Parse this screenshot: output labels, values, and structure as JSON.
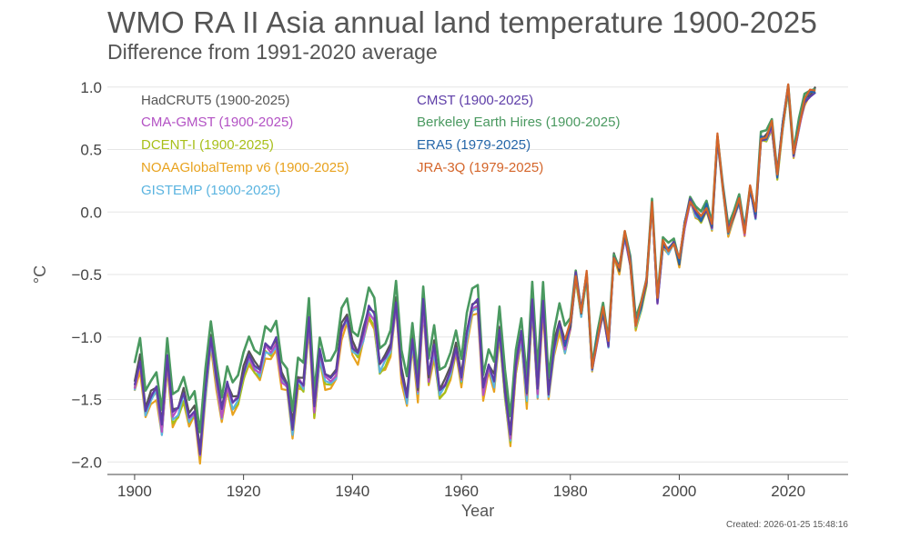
{
  "chart_data": {
    "type": "line",
    "title": "WMO RA II Asia annual land temperature 1900-2025",
    "subtitle": "Difference from 1991-2020 average",
    "xlabel": "Year",
    "ylabel": "°C",
    "xlim": [
      1895,
      2031
    ],
    "ylim": [
      -2.1,
      1.1
    ],
    "xticks": [
      1900,
      1920,
      1940,
      1960,
      1980,
      2000,
      2020
    ],
    "yticks": [
      {
        "value": 1.0,
        "label": "1.0"
      },
      {
        "value": 0.5,
        "label": "0.5"
      },
      {
        "value": 0.0,
        "label": "0.0"
      },
      {
        "value": -0.5,
        "label": "−0.5"
      },
      {
        "value": -1.0,
        "label": "−1.0"
      },
      {
        "value": -1.5,
        "label": "−1.5"
      },
      {
        "value": -2.0,
        "label": "−2.0"
      }
    ],
    "grid": "horizontal",
    "legend_position": "top-left",
    "created": "Created: 2026-01-25 15:48:16",
    "base_series": {
      "start_year": 1900,
      "values": [
        -1.35,
        -1.15,
        -1.55,
        -1.45,
        -1.38,
        -1.7,
        -1.15,
        -1.6,
        -1.55,
        -1.42,
        -1.6,
        -1.55,
        -1.9,
        -1.4,
        -1.0,
        -1.3,
        -1.58,
        -1.35,
        -1.5,
        -1.45,
        -1.25,
        -1.1,
        -1.2,
        -1.25,
        -1.05,
        -1.1,
        -1.0,
        -1.3,
        -1.35,
        -1.7,
        -1.3,
        -1.35,
        -0.82,
        -1.55,
        -1.1,
        -1.3,
        -1.32,
        -1.25,
        -0.9,
        -0.8,
        -1.05,
        -1.1,
        -0.95,
        -0.75,
        -0.82,
        -1.2,
        -1.15,
        -1.05,
        -0.68,
        -1.25,
        -1.45,
        -1.0,
        -1.4,
        -0.7,
        -1.3,
        -1.05,
        -1.4,
        -1.35,
        -1.22,
        -1.05,
        -1.3,
        -0.95,
        -0.75,
        -0.7,
        -1.4,
        -1.2,
        -1.32,
        -0.9,
        -1.4,
        -1.75,
        -1.2,
        -0.95,
        -1.45,
        -0.7,
        -1.4,
        -0.68,
        -1.42,
        -1.05,
        -0.85,
        -1.05,
        -0.9,
        -0.5,
        -0.8,
        -0.5,
        -1.25,
        -1.0,
        -0.78,
        -1.05,
        -0.35,
        -0.45,
        -0.18,
        -0.4,
        -0.9,
        -0.75,
        -0.55,
        0.1,
        -0.7,
        -0.25,
        -0.3,
        -0.25,
        -0.4,
        -0.1,
        0.1,
        0.0,
        -0.05,
        0.05,
        -0.1,
        0.6,
        0.2,
        -0.15,
        -0.05,
        0.1,
        -0.15,
        0.2,
        -0.02,
        0.6,
        0.6,
        0.7,
        0.3,
        0.7,
        1.0,
        0.45,
        0.7,
        0.9,
        0.95,
        0.98
      ]
    },
    "series": [
      {
        "name": "HadCRUT5 (1900-2025)",
        "color": "#555555",
        "offset": 0.0,
        "start_year": 1900
      },
      {
        "name": "CMA-GMST (1900-2025)",
        "color": "#b352c4",
        "offset": -0.04,
        "start_year": 1900
      },
      {
        "name": "DCENT-I (1900-2025)",
        "color": "#a8bf1a",
        "offset": -0.07,
        "start_year": 1900
      },
      {
        "name": "NOAAGlobalTemp v6 (1900-2025)",
        "color": "#e8a21e",
        "offset": -0.1,
        "start_year": 1900
      },
      {
        "name": "GISTEMP (1900-2025)",
        "color": "#5bb4e0",
        "offset": -0.06,
        "start_year": 1900
      },
      {
        "name": "CMST (1900-2025)",
        "color": "#5e3ea8",
        "offset": -0.02,
        "start_year": 1900
      },
      {
        "name": "Berkeley Earth Hires (1900-2025)",
        "color": "#4a9960",
        "offset": 0.12,
        "start_year": 1900
      },
      {
        "name": "ERA5 (1979-2025)",
        "color": "#2566a8",
        "offset": 0.0,
        "start_year": 1979
      },
      {
        "name": "JRA-3Q (1979-2025)",
        "color": "#d4652a",
        "offset": 0.02,
        "start_year": 1979
      }
    ]
  }
}
